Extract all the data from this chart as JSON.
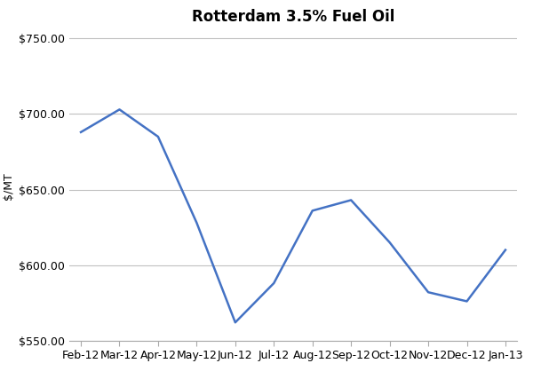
{
  "title": "Rotterdam 3.5% Fuel Oil",
  "ylabel": "$/MT",
  "labels": [
    "Feb-12",
    "Mar-12",
    "Apr-12",
    "May-12",
    "Jun-12",
    "Jul-12",
    "Aug-12",
    "Sep-12",
    "Oct-12",
    "Nov-12",
    "Dec-12",
    "Jan-13"
  ],
  "values": [
    688,
    703,
    685,
    628,
    562,
    588,
    636,
    643,
    615,
    582,
    576,
    610
  ],
  "line_color": "#4472C4",
  "line_width": 1.8,
  "ylim_min": 550,
  "ylim_max": 755,
  "yticks": [
    550,
    600,
    650,
    700,
    750
  ],
  "grid_color": "#C0C0C0",
  "bg_color": "#FFFFFF",
  "title_fontsize": 12,
  "label_fontsize": 9,
  "tick_fontsize": 9
}
